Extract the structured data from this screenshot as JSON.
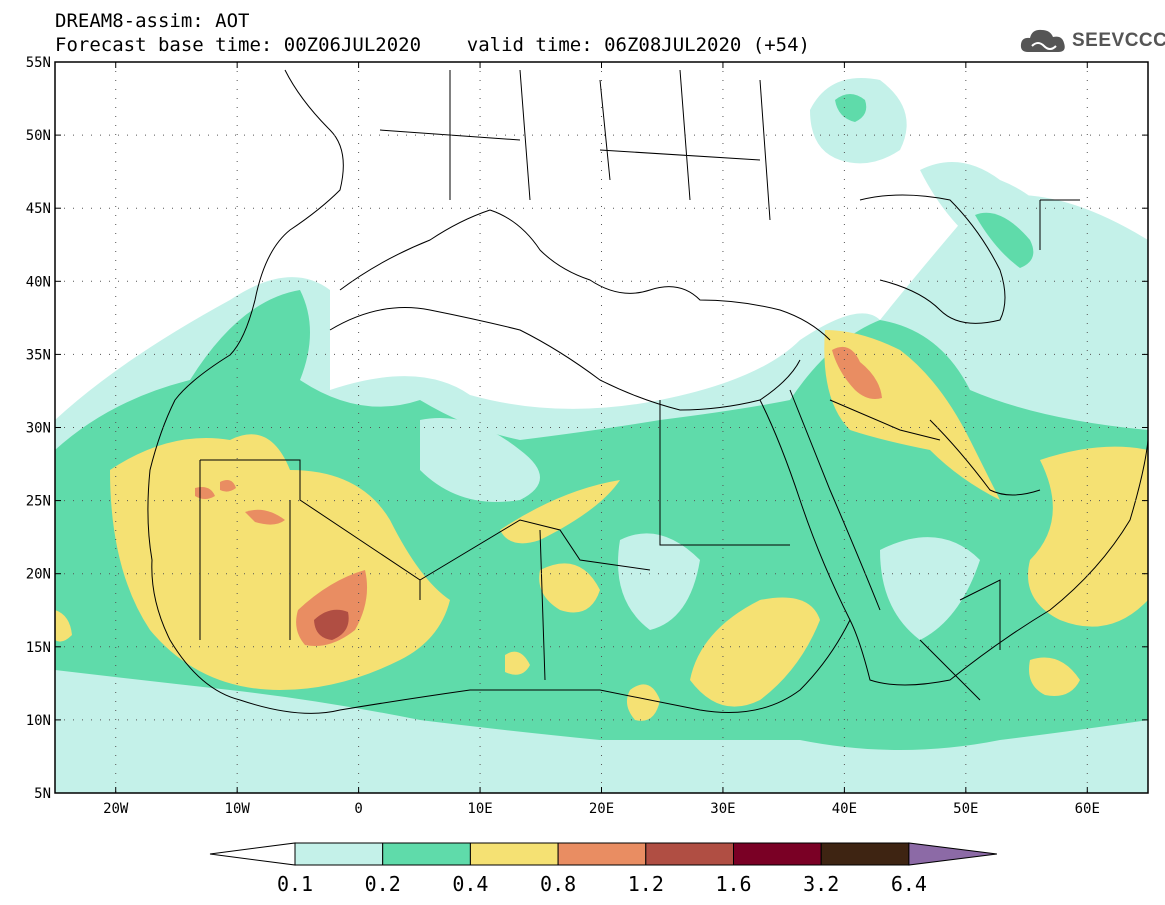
{
  "header": {
    "line1": "DREAM8-assim: AOT",
    "line2": "Forecast base time: 00Z06JUL2020    valid time: 06Z08JUL2020 (+54)"
  },
  "logo": {
    "text": "SEEVCCC",
    "icon": "cloud-icon"
  },
  "map": {
    "lon_range": [
      -25,
      65
    ],
    "lat_range": [
      5,
      55
    ],
    "lat_labels": [
      "55N",
      "50N",
      "45N",
      "40N",
      "35N",
      "30N",
      "25N",
      "20N",
      "15N",
      "10N",
      "5N"
    ],
    "lon_labels": [
      "20W",
      "10W",
      "0",
      "10E",
      "20E",
      "30E",
      "40E",
      "50E",
      "60E"
    ],
    "grid": "dotted"
  },
  "colorbar": {
    "labels": [
      "0.1",
      "0.2",
      "0.4",
      "0.8",
      "1.2",
      "1.6",
      "3.2",
      "6.4"
    ],
    "colors": [
      "#ffffff",
      "#c4f1e9",
      "#5fdbaa",
      "#f5e173",
      "#e98d62",
      "#b04e43",
      "#7a0025",
      "#3e2412",
      "#8c6aa6"
    ]
  }
}
